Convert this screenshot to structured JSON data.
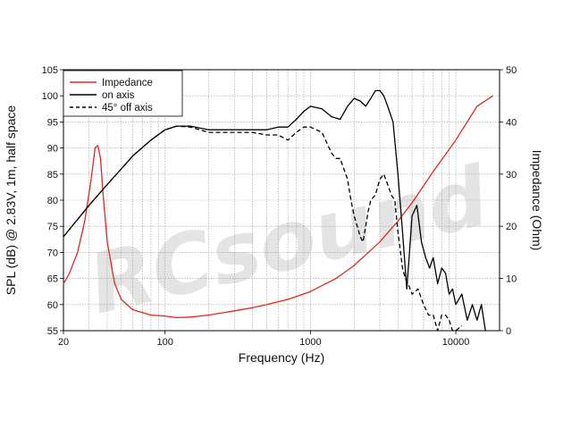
{
  "chart_data": {
    "type": "line",
    "title": "",
    "xlabel": "Frequency (Hz)",
    "ylabel_left": "SPL (dB) @ 2.83V, 1m, half space",
    "ylabel_right": "Impedance (Ohm)",
    "x_scale": "log",
    "xlim": [
      20,
      20000
    ],
    "ylim_left": [
      55,
      105
    ],
    "ylim_right": [
      0,
      50
    ],
    "x_ticks": [
      20,
      100,
      1000,
      10000
    ],
    "x_tick_labels": [
      "20",
      "100",
      "1000",
      "10000"
    ],
    "y_left_ticks": [
      55,
      60,
      65,
      70,
      75,
      80,
      85,
      90,
      95,
      100,
      105
    ],
    "y_right_ticks": [
      0,
      10,
      20,
      30,
      40,
      50
    ],
    "grid": true,
    "legend_position": "top-left",
    "watermark": "RCsound",
    "series": [
      {
        "name": "Impedance",
        "axis": "right",
        "color": "#e0281e",
        "style": "solid",
        "x": [
          20,
          22,
          25,
          28,
          31,
          33,
          34.5,
          36,
          37.5,
          40,
          45,
          50,
          60,
          80,
          100,
          120,
          150,
          200,
          300,
          400,
          500,
          700,
          1000,
          1500,
          2000,
          3000,
          4000,
          5000,
          7000,
          10000,
          14000,
          18000
        ],
        "y": [
          9,
          11,
          15,
          21,
          29,
          35,
          35.5,
          33,
          26,
          17,
          9,
          6,
          4,
          3,
          2.8,
          2.5,
          2.6,
          3,
          3.8,
          4.4,
          5,
          6,
          7.5,
          10,
          12.5,
          17,
          21,
          24.5,
          30.5,
          36.5,
          43,
          45
        ]
      },
      {
        "name": "on axis",
        "axis": "left",
        "color": "#000000",
        "style": "solid",
        "x": [
          20,
          30,
          40,
          50,
          60,
          80,
          100,
          120,
          150,
          200,
          250,
          300,
          400,
          500,
          600,
          700,
          800,
          900,
          1000,
          1200,
          1400,
          1600,
          1800,
          2000,
          2200,
          2400,
          2600,
          2800,
          3000,
          3200,
          3400,
          3700,
          4000,
          4300,
          4600,
          4800,
          5000,
          5400,
          5800,
          6200,
          6600,
          7000,
          7500,
          8000,
          8500,
          9000,
          9500,
          10000,
          11000,
          12000,
          13000,
          14000,
          15000,
          16000
        ],
        "y": [
          73,
          79,
          83,
          86,
          88.5,
          91.5,
          93.5,
          94.2,
          94.2,
          93.5,
          93.5,
          93.5,
          93.5,
          93.5,
          94,
          94,
          95.5,
          97,
          98,
          97.5,
          96,
          95.5,
          98,
          99.5,
          99,
          98,
          99.5,
          101,
          101,
          100,
          98,
          95,
          85,
          74,
          63,
          70,
          77,
          79,
          72,
          69,
          67,
          69,
          64,
          67,
          66,
          62,
          63,
          60,
          62,
          57,
          60,
          57,
          60,
          55
        ]
      },
      {
        "name": "45° off axis",
        "axis": "left",
        "color": "#000000",
        "style": "dashed",
        "x": [
          20,
          30,
          40,
          50,
          60,
          80,
          100,
          120,
          150,
          200,
          250,
          300,
          400,
          500,
          600,
          700,
          800,
          900,
          1000,
          1200,
          1400,
          1500,
          1600,
          1800,
          1900,
          2000,
          2100,
          2200,
          2300,
          2400,
          2500,
          2600,
          2800,
          3000,
          3200,
          3400,
          3600,
          3800,
          4000,
          4300,
          4500,
          4700,
          5000,
          5500,
          6000,
          6500,
          7000,
          7500,
          8000,
          8500,
          9000,
          9500,
          10000,
          11000
        ],
        "y": [
          73,
          79,
          83,
          86,
          88.5,
          91.5,
          93.5,
          94.2,
          94,
          93,
          93,
          93,
          93,
          92.5,
          92.5,
          91.5,
          93,
          94,
          94,
          93,
          89,
          88,
          88,
          84,
          80,
          77,
          75,
          73,
          72,
          75,
          78,
          80,
          81,
          84,
          85,
          83,
          81,
          80,
          74,
          67,
          65,
          64,
          62,
          63,
          60,
          58,
          58,
          54,
          58,
          58,
          57,
          55,
          54,
          56
        ]
      }
    ]
  }
}
